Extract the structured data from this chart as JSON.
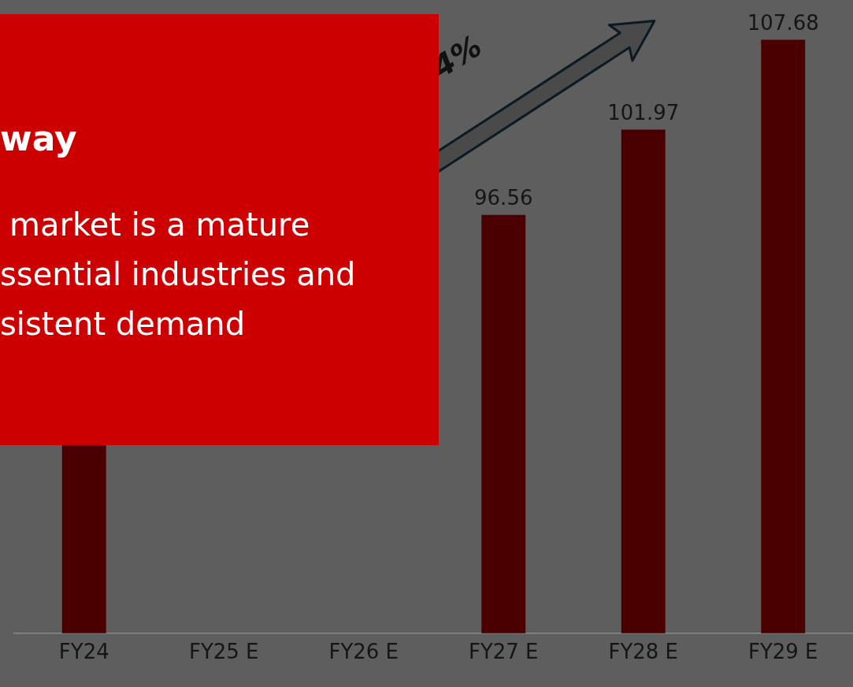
{
  "chart_data": {
    "type": "bar",
    "title": "way",
    "categories": [
      "FY24",
      "FY25 E",
      "FY26 E",
      "FY27 E",
      "FY28 E",
      "FY29 E"
    ],
    "values": [
      82.0,
      null,
      null,
      96.56,
      101.97,
      107.68
    ],
    "value_labels": [
      null,
      null,
      null,
      "96.56",
      "101.97",
      "107.68"
    ],
    "color": "#4a0000",
    "ylim": [
      70,
      110
    ],
    "grid": false,
    "legend": false,
    "annotations": [
      "market is a mature",
      "ssential industries and",
      "sistent demand",
      "4%"
    ]
  }
}
